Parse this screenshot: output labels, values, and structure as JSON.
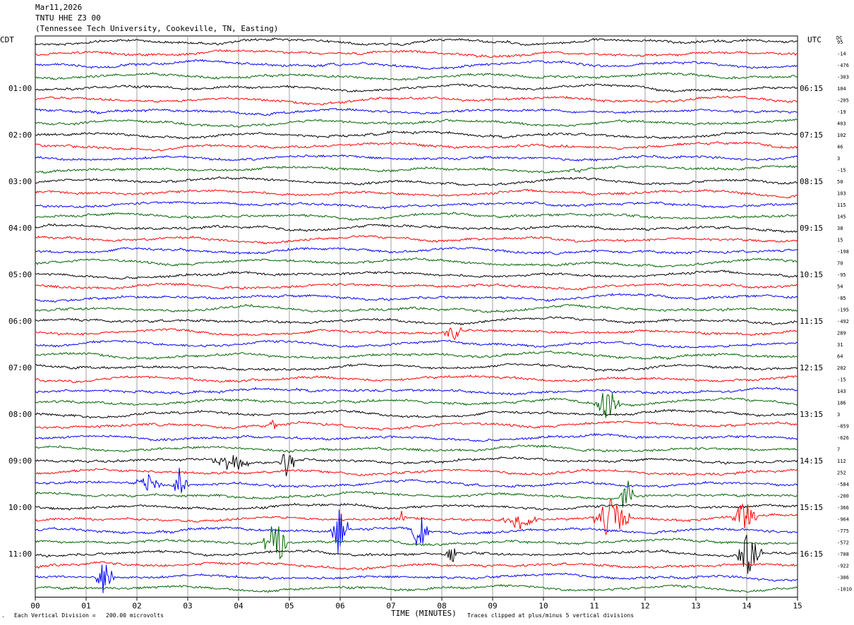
{
  "header": {
    "date": "Mar11,2026",
    "station": "TNTU HHE Z3 00",
    "location": "(Tennessee Tech University, Cookeville, TN, Easting)"
  },
  "left_tz": "CDT",
  "right_tz": "UTC",
  "dc_label": "DC",
  "footer": {
    "scale_prefix": "Each Vertical Division =",
    "scale_value": "200.00 microvolts",
    "clip_note": "Traces clipped at plus/minus 5 vertical divisions",
    "xlabel": "TIME (MINUTES)"
  },
  "chart_data": {
    "type": "line",
    "xlabel": "TIME (MINUTES)",
    "xlim": [
      0,
      15
    ],
    "x_ticks": [
      "00",
      "01",
      "02",
      "03",
      "04",
      "05",
      "06",
      "07",
      "08",
      "09",
      "10",
      "11",
      "12",
      "13",
      "14",
      "15"
    ],
    "rows_per_hour": 4,
    "trace_colors": [
      "#000000",
      "#ff0000",
      "#0000ff",
      "#006400"
    ],
    "left_time_labels": [
      "01:00",
      "02:00",
      "03:00",
      "04:00",
      "05:00",
      "06:00",
      "07:00",
      "08:00",
      "09:00",
      "10:00",
      "11:00"
    ],
    "right_time_labels": [
      "06:15",
      "07:15",
      "08:15",
      "09:15",
      "10:15",
      "11:15",
      "12:15",
      "13:15",
      "14:15",
      "15:15",
      "16:15"
    ],
    "dc_offsets": [
      "95",
      "-14",
      "-476",
      "-303",
      "104",
      "-205",
      "-19",
      "403",
      "102",
      "46",
      "3",
      "-15",
      "50",
      "103",
      "115",
      "145",
      "38",
      "15",
      "-198",
      "70",
      "-95",
      "54",
      "-85",
      "-195",
      "-492",
      "289",
      "31",
      "64",
      "202",
      "-15",
      "143",
      "186",
      "3",
      "-859",
      "-626",
      "7",
      "112",
      "252",
      "-584",
      "-200",
      "-366",
      "-964",
      "-775",
      "-572",
      "-708",
      "-922",
      "-306",
      "-1010"
    ],
    "events": [
      {
        "row": 36,
        "x_start": 3.5,
        "x_end": 4.2,
        "amp": 1.1
      },
      {
        "row": 36,
        "x_start": 4.8,
        "x_end": 5.1,
        "amp": 2.5
      },
      {
        "row": 33,
        "x_start": 4.55,
        "x_end": 4.75,
        "amp": 0.6
      },
      {
        "row": 38,
        "x_start": 2.0,
        "x_end": 2.5,
        "amp": 1.0
      },
      {
        "row": 38,
        "x_start": 2.7,
        "x_end": 3.0,
        "amp": 2.0
      },
      {
        "row": 42,
        "x_start": 5.8,
        "x_end": 6.15,
        "amp": 2.5
      },
      {
        "row": 42,
        "x_start": 7.4,
        "x_end": 7.75,
        "amp": 3.0
      },
      {
        "row": 43,
        "x_start": 4.5,
        "x_end": 4.95,
        "amp": 2.5
      },
      {
        "row": 46,
        "x_start": 1.2,
        "x_end": 1.55,
        "amp": 2.5
      },
      {
        "row": 31,
        "x_start": 11.0,
        "x_end": 11.5,
        "amp": 1.8
      },
      {
        "row": 39,
        "x_start": 11.5,
        "x_end": 11.8,
        "amp": 2.2
      },
      {
        "row": 41,
        "x_start": 11.0,
        "x_end": 11.7,
        "amp": 2.5
      },
      {
        "row": 41,
        "x_start": 13.7,
        "x_end": 14.2,
        "amp": 1.8
      },
      {
        "row": 41,
        "x_start": 9.2,
        "x_end": 9.9,
        "amp": 0.8
      },
      {
        "row": 41,
        "x_start": 7.1,
        "x_end": 7.3,
        "amp": 0.8
      },
      {
        "row": 44,
        "x_start": 13.8,
        "x_end": 14.3,
        "amp": 2.5
      },
      {
        "row": 44,
        "x_start": 8.1,
        "x_end": 8.3,
        "amp": 1.0
      },
      {
        "row": 43,
        "x_start": 4.75,
        "x_end": 4.95,
        "amp": 2.0
      },
      {
        "row": 25,
        "x_start": 8.0,
        "x_end": 8.5,
        "amp": 0.8
      },
      {
        "row": 11,
        "x_start": 10.5,
        "x_end": 10.8,
        "amp": 0.3
      }
    ]
  }
}
